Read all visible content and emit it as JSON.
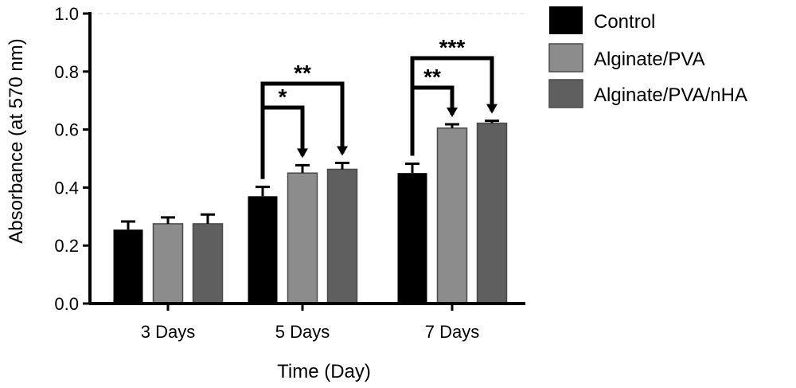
{
  "chart_data": {
    "type": "bar",
    "title": "",
    "xlabel": "Time (Day)",
    "ylabel": "Absorbance (at 570 nm)",
    "ylim": [
      0,
      1.0
    ],
    "yticks": [
      "0.0",
      "0.2",
      "0.4",
      "0.6",
      "0.8",
      "1.0"
    ],
    "categories": [
      "3 Days",
      "5 Days",
      "7 Days"
    ],
    "series": [
      {
        "name": "Control",
        "color": "#000000",
        "values": [
          0.255,
          0.37,
          0.45
        ],
        "errors": [
          0.028,
          0.032,
          0.032
        ]
      },
      {
        "name": "Alginate/PVA",
        "color": "#8c8c8c",
        "values": [
          0.275,
          0.45,
          0.605
        ],
        "errors": [
          0.022,
          0.027,
          0.013
        ]
      },
      {
        "name": "Alginate/PVA/nHA",
        "color": "#5f5f5f",
        "values": [
          0.275,
          0.463,
          0.622
        ],
        "errors": [
          0.032,
          0.022,
          0.008
        ]
      }
    ],
    "legend_position": "top-right",
    "grid": false,
    "significance": [
      {
        "category": 1,
        "from_series": 0,
        "to_series": 1,
        "label": "*"
      },
      {
        "category": 1,
        "from_series": 0,
        "to_series": 2,
        "label": "**"
      },
      {
        "category": 2,
        "from_series": 0,
        "to_series": 1,
        "label": "**"
      },
      {
        "category": 2,
        "from_series": 0,
        "to_series": 2,
        "label": "***"
      }
    ]
  }
}
